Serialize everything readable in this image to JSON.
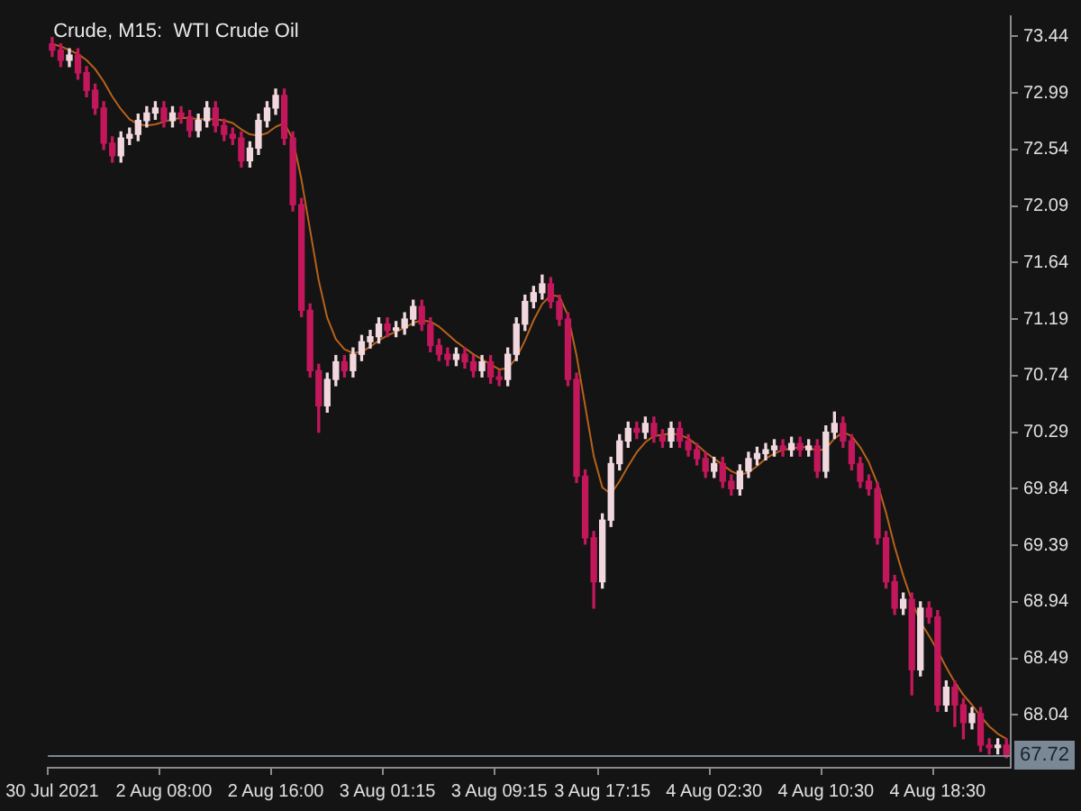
{
  "chart_data": {
    "type": "candlestick",
    "title": "Crude, M15:  WTI Crude Oil",
    "categories": [
      "30 Jul 2021",
      null,
      null,
      null,
      null,
      null,
      null,
      null,
      null,
      null,
      null,
      null,
      null,
      "2 Aug 08:00",
      null,
      null,
      null,
      null,
      null,
      null,
      null,
      null,
      null,
      null,
      null,
      null,
      "2 Aug 16:00",
      null,
      null,
      null,
      null,
      null,
      null,
      null,
      null,
      null,
      null,
      null,
      null,
      "3 Aug 01:15",
      null,
      null,
      null,
      null,
      null,
      null,
      null,
      null,
      null,
      null,
      null,
      null,
      "3 Aug 09:15",
      null,
      null,
      null,
      null,
      null,
      null,
      null,
      null,
      null,
      null,
      null,
      "3 Aug 17:15",
      null,
      null,
      null,
      null,
      null,
      null,
      null,
      null,
      null,
      null,
      null,
      null,
      "4 Aug 02:30",
      null,
      null,
      null,
      null,
      null,
      null,
      null,
      null,
      null,
      null,
      null,
      null,
      "4 Aug 10:30",
      null,
      null,
      null,
      null,
      null,
      null,
      null,
      null,
      null,
      null,
      null,
      null,
      "4 Aug 18:30",
      null,
      null,
      null,
      null,
      null,
      null,
      null,
      null
    ],
    "ohlc": [
      [
        73.38,
        73.43,
        73.28,
        73.33
      ],
      [
        73.33,
        73.38,
        73.2,
        73.25
      ],
      [
        73.25,
        73.34,
        73.2,
        73.29
      ],
      [
        73.29,
        73.34,
        73.1,
        73.15
      ],
      [
        73.15,
        73.2,
        72.96,
        73.01
      ],
      [
        73.01,
        73.06,
        72.82,
        72.87
      ],
      [
        72.87,
        72.92,
        72.54,
        72.59
      ],
      [
        72.59,
        72.64,
        72.44,
        72.49
      ],
      [
        72.49,
        72.68,
        72.44,
        72.63
      ],
      [
        72.63,
        72.71,
        72.58,
        72.66
      ],
      [
        72.66,
        72.82,
        72.61,
        72.77
      ],
      [
        72.77,
        72.88,
        72.72,
        72.83
      ],
      [
        72.83,
        72.92,
        72.78,
        72.87
      ],
      [
        72.87,
        72.92,
        72.72,
        72.77
      ],
      [
        72.77,
        72.88,
        72.72,
        72.83
      ],
      [
        72.83,
        72.88,
        72.75,
        72.8
      ],
      [
        72.8,
        72.85,
        72.64,
        72.69
      ],
      [
        72.69,
        72.82,
        72.64,
        72.77
      ],
      [
        72.77,
        72.92,
        72.72,
        72.87
      ],
      [
        72.87,
        72.92,
        72.68,
        72.73
      ],
      [
        72.73,
        72.78,
        72.61,
        72.66
      ],
      [
        72.66,
        72.71,
        72.58,
        72.63
      ],
      [
        72.63,
        72.68,
        72.4,
        72.45
      ],
      [
        72.45,
        72.6,
        72.4,
        72.55
      ],
      [
        72.55,
        72.82,
        72.5,
        72.77
      ],
      [
        72.77,
        72.92,
        72.72,
        72.87
      ],
      [
        72.87,
        73.02,
        72.82,
        72.97
      ],
      [
        72.97,
        73.02,
        72.58,
        72.63
      ],
      [
        72.63,
        72.68,
        72.05,
        72.1
      ],
      [
        72.1,
        72.15,
        71.21,
        71.26
      ],
      [
        71.26,
        71.31,
        70.73,
        70.78
      ],
      [
        70.78,
        70.83,
        70.29,
        70.5
      ],
      [
        70.5,
        70.76,
        70.45,
        70.71
      ],
      [
        70.71,
        70.9,
        70.66,
        70.85
      ],
      [
        70.85,
        70.9,
        70.73,
        70.78
      ],
      [
        70.78,
        70.96,
        70.73,
        70.91
      ],
      [
        70.91,
        71.06,
        70.86,
        71.01
      ],
      [
        71.01,
        71.1,
        70.96,
        71.05
      ],
      [
        71.05,
        71.2,
        71.0,
        71.15
      ],
      [
        71.15,
        71.2,
        71.05,
        71.1
      ],
      [
        71.1,
        71.17,
        71.05,
        71.12
      ],
      [
        71.12,
        71.24,
        71.07,
        71.19
      ],
      [
        71.19,
        71.34,
        71.14,
        71.29
      ],
      [
        71.29,
        71.34,
        71.1,
        71.15
      ],
      [
        71.15,
        71.2,
        70.93,
        70.98
      ],
      [
        70.98,
        71.03,
        70.86,
        70.91
      ],
      [
        70.91,
        70.96,
        70.82,
        70.87
      ],
      [
        70.87,
        70.96,
        70.82,
        70.91
      ],
      [
        70.91,
        70.96,
        70.8,
        70.85
      ],
      [
        70.85,
        70.9,
        70.73,
        70.78
      ],
      [
        70.78,
        70.9,
        70.73,
        70.85
      ],
      [
        70.85,
        70.9,
        70.68,
        70.73
      ],
      [
        70.73,
        70.78,
        70.66,
        70.71
      ],
      [
        70.71,
        70.96,
        70.66,
        70.91
      ],
      [
        70.91,
        71.2,
        70.86,
        71.15
      ],
      [
        71.15,
        71.38,
        71.1,
        71.33
      ],
      [
        71.33,
        71.45,
        71.28,
        71.4
      ],
      [
        71.4,
        71.54,
        71.35,
        71.47
      ],
      [
        71.47,
        71.52,
        71.28,
        71.33
      ],
      [
        71.33,
        71.38,
        71.14,
        71.19
      ],
      [
        71.19,
        71.24,
        70.66,
        70.71
      ],
      [
        70.71,
        70.76,
        69.89,
        69.94
      ],
      [
        69.94,
        69.99,
        69.4,
        69.45
      ],
      [
        69.45,
        69.5,
        68.89,
        69.1
      ],
      [
        69.1,
        69.64,
        69.05,
        69.59
      ],
      [
        69.59,
        70.09,
        69.54,
        70.04
      ],
      [
        70.04,
        70.27,
        69.99,
        70.22
      ],
      [
        70.22,
        70.37,
        70.17,
        70.32
      ],
      [
        70.32,
        70.37,
        70.24,
        70.29
      ],
      [
        70.29,
        70.41,
        70.24,
        70.36
      ],
      [
        70.36,
        70.41,
        70.21,
        70.26
      ],
      [
        70.26,
        70.31,
        70.17,
        70.22
      ],
      [
        70.22,
        70.37,
        70.17,
        70.32
      ],
      [
        70.32,
        70.37,
        70.17,
        70.22
      ],
      [
        70.22,
        70.27,
        70.1,
        70.15
      ],
      [
        70.15,
        70.2,
        70.03,
        70.08
      ],
      [
        70.08,
        70.13,
        69.93,
        69.98
      ],
      [
        69.98,
        70.09,
        69.93,
        70.04
      ],
      [
        70.04,
        70.09,
        69.85,
        69.9
      ],
      [
        69.9,
        69.95,
        69.79,
        69.84
      ],
      [
        69.84,
        70.03,
        69.79,
        69.98
      ],
      [
        69.98,
        70.13,
        69.93,
        70.08
      ],
      [
        70.08,
        70.17,
        70.03,
        70.12
      ],
      [
        70.12,
        70.2,
        70.07,
        70.15
      ],
      [
        70.15,
        70.23,
        70.1,
        70.18
      ],
      [
        70.18,
        70.23,
        70.1,
        70.15
      ],
      [
        70.15,
        70.25,
        70.1,
        70.2
      ],
      [
        70.2,
        70.25,
        70.1,
        70.15
      ],
      [
        70.15,
        70.23,
        70.1,
        70.18
      ],
      [
        70.18,
        70.23,
        69.93,
        69.98
      ],
      [
        69.98,
        70.34,
        69.93,
        70.29
      ],
      [
        70.29,
        70.45,
        70.24,
        70.36
      ],
      [
        70.36,
        70.41,
        70.17,
        70.22
      ],
      [
        70.22,
        70.27,
        69.99,
        70.04
      ],
      [
        70.04,
        70.09,
        69.85,
        69.9
      ],
      [
        69.9,
        69.95,
        69.79,
        69.84
      ],
      [
        69.84,
        69.89,
        69.4,
        69.45
      ],
      [
        69.45,
        69.5,
        69.05,
        69.1
      ],
      [
        69.1,
        69.15,
        68.84,
        68.89
      ],
      [
        68.89,
        69.01,
        68.84,
        68.96
      ],
      [
        68.96,
        69.01,
        68.2,
        68.4
      ],
      [
        68.4,
        68.94,
        68.35,
        68.89
      ],
      [
        68.89,
        68.94,
        68.77,
        68.82
      ],
      [
        68.82,
        68.87,
        68.07,
        68.12
      ],
      [
        68.12,
        68.31,
        68.07,
        68.26
      ],
      [
        68.26,
        68.31,
        67.95,
        68.12
      ],
      [
        68.12,
        68.17,
        67.85,
        67.98
      ],
      [
        67.98,
        68.1,
        67.93,
        68.05
      ],
      [
        68.05,
        68.1,
        67.75,
        67.8
      ],
      [
        67.8,
        67.85,
        67.73,
        67.78
      ],
      [
        67.78,
        67.85,
        67.73,
        67.8
      ],
      [
        67.8,
        67.85,
        67.7,
        67.72
      ]
    ],
    "colors": [
      "#c2185b",
      "#c2185b",
      "#f0d8de",
      "#c2185b",
      "#c2185b",
      "#c2185b",
      "#c2185b",
      "#c2185b",
      "#f0d8de",
      "#f0d8de",
      "#f0d8de",
      "#f0d8de",
      "#f0d8de",
      "#c2185b",
      "#f0d8de",
      "#c2185b",
      "#c2185b",
      "#f0d8de",
      "#f0d8de",
      "#c2185b",
      "#c2185b",
      "#c2185b",
      "#c2185b",
      "#f0d8de",
      "#f0d8de",
      "#f0d8de",
      "#f0d8de",
      "#c2185b",
      "#c2185b",
      "#c2185b",
      "#c2185b",
      "#c2185b",
      "#f0d8de",
      "#f0d8de",
      "#c2185b",
      "#f0d8de",
      "#f0d8de",
      "#f0d8de",
      "#f0d8de",
      "#c2185b",
      "#f0d8de",
      "#f0d8de",
      "#f0d8de",
      "#c2185b",
      "#c2185b",
      "#c2185b",
      "#c2185b",
      "#f0d8de",
      "#c2185b",
      "#c2185b",
      "#f0d8de",
      "#c2185b",
      "#c2185b",
      "#f0d8de",
      "#f0d8de",
      "#f0d8de",
      "#f0d8de",
      "#f0d8de",
      "#c2185b",
      "#c2185b",
      "#c2185b",
      "#c2185b",
      "#c2185b",
      "#c2185b",
      "#f0d8de",
      "#f0d8de",
      "#f0d8de",
      "#f0d8de",
      "#c2185b",
      "#f0d8de",
      "#c2185b",
      "#c2185b",
      "#f0d8de",
      "#c2185b",
      "#c2185b",
      "#c2185b",
      "#c2185b",
      "#f0d8de",
      "#c2185b",
      "#c2185b",
      "#f0d8de",
      "#f0d8de",
      "#f0d8de",
      "#f0d8de",
      "#f0d8de",
      "#c2185b",
      "#f0d8de",
      "#c2185b",
      "#f0d8de",
      "#c2185b",
      "#f0d8de",
      "#f0d8de",
      "#c2185b",
      "#c2185b",
      "#c2185b",
      "#c2185b",
      "#c2185b",
      "#c2185b",
      "#c2185b",
      "#f0d8de",
      "#c2185b",
      "#f0d8de",
      "#c2185b",
      "#c2185b",
      "#f0d8de",
      "#c2185b",
      "#c2185b",
      "#f0d8de",
      "#c2185b",
      "#c2185b",
      "#f0d8de",
      "#c2185b"
    ],
    "series": [
      {
        "type": "line",
        "color": "#b8621b",
        "values": [
          73.38,
          73.36,
          73.33,
          73.3,
          73.25,
          73.18,
          73.08,
          72.96,
          72.86,
          72.78,
          72.74,
          72.73,
          72.74,
          72.76,
          72.78,
          72.79,
          72.79,
          72.78,
          72.78,
          72.78,
          72.77,
          72.75,
          72.7,
          72.66,
          72.65,
          72.67,
          72.72,
          72.75,
          72.62,
          72.3,
          71.9,
          71.5,
          71.2,
          71.03,
          70.95,
          70.92,
          70.93,
          70.97,
          71.02,
          71.06,
          71.09,
          71.12,
          71.16,
          71.18,
          71.17,
          71.13,
          71.07,
          71.01,
          70.96,
          70.91,
          70.87,
          70.83,
          70.79,
          70.8,
          70.88,
          71.02,
          71.18,
          71.31,
          71.38,
          71.37,
          71.22,
          70.9,
          70.5,
          70.1,
          69.85,
          69.8,
          69.9,
          70.02,
          70.13,
          70.21,
          70.26,
          70.27,
          70.28,
          70.27,
          70.24,
          70.19,
          70.13,
          70.08,
          70.03,
          69.98,
          69.95,
          69.97,
          70.02,
          70.08,
          70.12,
          70.15,
          70.16,
          70.17,
          70.17,
          70.14,
          70.16,
          70.24,
          70.29,
          70.26,
          70.17,
          70.05,
          69.88,
          69.65,
          69.38,
          69.15,
          68.95,
          68.78,
          68.67,
          68.55,
          68.42,
          68.3,
          68.2,
          68.12,
          68.03,
          67.95,
          67.89,
          67.85
        ]
      }
    ],
    "ylim": [
      67.62,
      73.6
    ],
    "yticks": [
      73.44,
      72.99,
      72.54,
      72.09,
      71.64,
      71.19,
      70.74,
      70.29,
      69.84,
      69.39,
      68.94,
      68.49,
      68.04
    ],
    "grid": false,
    "legend": false,
    "ref_lines": [
      {
        "axis": "y",
        "value": 67.72,
        "label": "67.72",
        "color": "#7a8896"
      }
    ]
  }
}
